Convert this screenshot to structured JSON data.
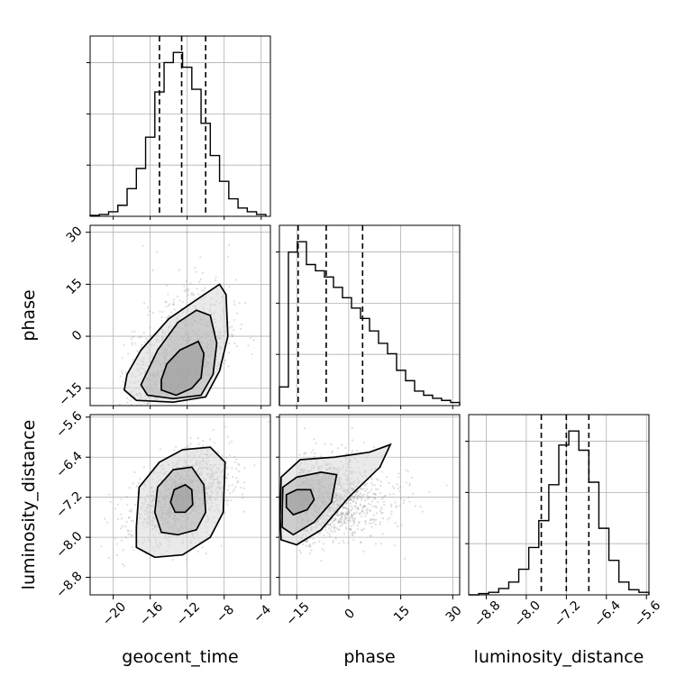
{
  "chart_data": {
    "type": "corner",
    "parameters": [
      "geocent_time",
      "phase",
      "luminosity_distance"
    ],
    "axis_labels": [
      "geocent_time",
      "phase",
      "luminosity_distance"
    ],
    "ranges": {
      "geocent_time": [
        -22.5,
        -3.0
      ],
      "phase": [
        -20.0,
        32.0
      ],
      "luminosity_distance": [
        -9.15,
        -5.55
      ]
    },
    "ticks": {
      "geocent_time": [
        -20,
        -16,
        -12,
        -8,
        -4
      ],
      "phase": [
        -15,
        0,
        15,
        30
      ],
      "luminosity_distance": [
        -8.8,
        -8.0,
        -7.2,
        -6.4,
        -5.6
      ]
    },
    "tick_labels": {
      "geocent_time": [
        "−20",
        "−16",
        "−12",
        "−8",
        "−4"
      ],
      "phase": [
        "−15",
        "0",
        "15",
        "30"
      ],
      "luminosity_distance": [
        "−8.8",
        "−8.0",
        "−7.2",
        "−6.4",
        "−5.6"
      ]
    },
    "quantiles": {
      "geocent_time": [
        -15.0,
        -12.6,
        -10.0
      ],
      "phase": [
        -14.6,
        -6.5,
        4.0
      ],
      "luminosity_distance": [
        -7.7,
        -7.2,
        -6.75
      ]
    },
    "histograms": {
      "geocent_time": {
        "bin_edges": [
          -22.5,
          -21.5,
          -20.5,
          -19.5,
          -18.5,
          -17.5,
          -16.5,
          -15.5,
          -14.5,
          -13.5,
          -12.5,
          -11.5,
          -10.5,
          -9.5,
          -8.5,
          -7.5,
          -6.5,
          -5.5,
          -4.5,
          -3.5
        ],
        "counts": [
          1,
          2,
          5,
          12,
          30,
          52,
          86,
          135,
          167,
          178,
          162,
          138,
          101,
          66,
          38,
          19,
          9,
          5,
          2
        ]
      },
      "phase": {
        "bin_edges": [
          -20,
          -17.4,
          -14.8,
          -12.2,
          -9.6,
          -7.0,
          -4.4,
          -1.8,
          0.8,
          3.4,
          6.0,
          8.6,
          11.2,
          13.8,
          16.4,
          19.0,
          21.6,
          24.2,
          26.8,
          29.4,
          32
        ],
        "counts": [
          18,
          148,
          158,
          136,
          130,
          124,
          114,
          104,
          94,
          84,
          72,
          60,
          50,
          34,
          24,
          14,
          10,
          7,
          5,
          3
        ]
      },
      "luminosity_distance": {
        "bin_edges": [
          -9.15,
          -8.95,
          -8.75,
          -8.55,
          -8.35,
          -8.15,
          -7.95,
          -7.75,
          -7.55,
          -7.35,
          -7.15,
          -6.95,
          -6.75,
          -6.55,
          -6.35,
          -6.15,
          -5.95,
          -5.75,
          -5.55
        ],
        "counts": [
          0,
          1,
          2,
          5,
          10,
          20,
          37,
          58,
          86,
          117,
          128,
          113,
          88,
          52,
          27,
          10,
          4,
          2
        ]
      }
    },
    "density_2d": [
      {
        "x": "geocent_time",
        "y": "phase",
        "mean": [
          -12.6,
          -6.5
        ],
        "std": [
          2.6,
          9.5
        ],
        "correlation": 0.45,
        "contours": [
          {
            "level": "inner",
            "points": [
              [
                -14.8,
                -12.5
              ],
              [
                -14.8,
                -15.5
              ],
              [
                -13.2,
                -17.0
              ],
              [
                -11.5,
                -15.0
              ],
              [
                -10.5,
                -12.0
              ],
              [
                -10.2,
                -5.0
              ],
              [
                -10.8,
                -1.5
              ],
              [
                -12.8,
                -4.0
              ],
              [
                -14.2,
                -8.0
              ],
              [
                -14.8,
                -12.5
              ]
            ]
          },
          {
            "level": "middle",
            "points": [
              [
                -17.0,
                -14.0
              ],
              [
                -16.3,
                -17.0
              ],
              [
                -13.5,
                -18.0
              ],
              [
                -10.5,
                -17.0
              ],
              [
                -9.2,
                -11.0
              ],
              [
                -8.8,
                -2.0
              ],
              [
                -9.5,
                6.0
              ],
              [
                -11.0,
                7.5
              ],
              [
                -13.0,
                4.0
              ],
              [
                -15.2,
                -4.0
              ],
              [
                -17.0,
                -14.0
              ]
            ]
          },
          {
            "level": "outer",
            "points": [
              [
                -18.8,
                -15.5
              ],
              [
                -17.5,
                -18.5
              ],
              [
                -13.5,
                -19.0
              ],
              [
                -10.0,
                -17.5
              ],
              [
                -8.5,
                -10.0
              ],
              [
                -7.6,
                0.0
              ],
              [
                -7.8,
                12.0
              ],
              [
                -8.5,
                15.0
              ],
              [
                -11.0,
                10.5
              ],
              [
                -14.0,
                5.0
              ],
              [
                -17.0,
                -4.0
              ],
              [
                -18.5,
                -11.0
              ],
              [
                -18.8,
                -15.5
              ]
            ]
          }
        ]
      },
      {
        "x": "geocent_time",
        "y": "luminosity_distance",
        "mean": [
          -12.6,
          -7.2
        ],
        "std": [
          2.6,
          0.42
        ],
        "correlation": 0.45,
        "contours": [
          {
            "level": "inner",
            "points": [
              [
                -13.8,
                -7.3
              ],
              [
                -13.4,
                -7.05
              ],
              [
                -12.2,
                -6.95
              ],
              [
                -11.5,
                -7.05
              ],
              [
                -11.4,
                -7.35
              ],
              [
                -12.2,
                -7.5
              ],
              [
                -13.3,
                -7.5
              ],
              [
                -13.8,
                -7.3
              ]
            ]
          },
          {
            "level": "middle",
            "points": [
              [
                -15.5,
                -7.5
              ],
              [
                -15.2,
                -7.0
              ],
              [
                -13.5,
                -6.65
              ],
              [
                -11.5,
                -6.6
              ],
              [
                -10.2,
                -6.95
              ],
              [
                -10.0,
                -7.5
              ],
              [
                -11.0,
                -7.85
              ],
              [
                -13.0,
                -7.95
              ],
              [
                -14.8,
                -7.9
              ],
              [
                -15.5,
                -7.5
              ]
            ]
          },
          {
            "level": "outer",
            "points": [
              [
                -17.5,
                -7.8
              ],
              [
                -17.2,
                -7.0
              ],
              [
                -15.0,
                -6.5
              ],
              [
                -12.5,
                -6.25
              ],
              [
                -9.5,
                -6.2
              ],
              [
                -7.9,
                -6.5
              ],
              [
                -8.1,
                -7.5
              ],
              [
                -9.5,
                -8.0
              ],
              [
                -12.5,
                -8.35
              ],
              [
                -15.5,
                -8.4
              ],
              [
                -17.5,
                -8.2
              ],
              [
                -17.5,
                -7.8
              ]
            ]
          }
        ]
      },
      {
        "x": "phase",
        "y": "luminosity_distance",
        "mean": [
          -6.5,
          -7.2
        ],
        "std": [
          9.5,
          0.42
        ],
        "correlation": 0.45,
        "contours": [
          {
            "level": "inner",
            "points": [
              [
                -18.0,
                -7.4
              ],
              [
                -18.0,
                -7.15
              ],
              [
                -15.0,
                -7.05
              ],
              [
                -11.0,
                -7.05
              ],
              [
                -10.0,
                -7.25
              ],
              [
                -12.0,
                -7.45
              ],
              [
                -16.0,
                -7.55
              ],
              [
                -18.0,
                -7.4
              ]
            ]
          },
          {
            "level": "middle",
            "points": [
              [
                -19.2,
                -7.5
              ],
              [
                -19.0,
                -7.0
              ],
              [
                -15.0,
                -6.8
              ],
              [
                -8.0,
                -6.7
              ],
              [
                -3.5,
                -6.75
              ],
              [
                -5.0,
                -7.3
              ],
              [
                -10.0,
                -7.7
              ],
              [
                -16.0,
                -7.95
              ],
              [
                -19.2,
                -7.8
              ],
              [
                -19.2,
                -7.5
              ]
            ]
          },
          {
            "level": "outer",
            "points": [
              [
                -19.8,
                -7.6
              ],
              [
                -19.5,
                -6.8
              ],
              [
                -14.0,
                -6.45
              ],
              [
                -4.0,
                -6.4
              ],
              [
                6.0,
                -6.3
              ],
              [
                12.0,
                -6.15
              ],
              [
                9.0,
                -6.6
              ],
              [
                0.0,
                -7.2
              ],
              [
                -8.0,
                -7.85
              ],
              [
                -15.0,
                -8.15
              ],
              [
                -19.5,
                -8.05
              ],
              [
                -19.8,
                -7.6
              ]
            ]
          }
        ]
      }
    ]
  }
}
